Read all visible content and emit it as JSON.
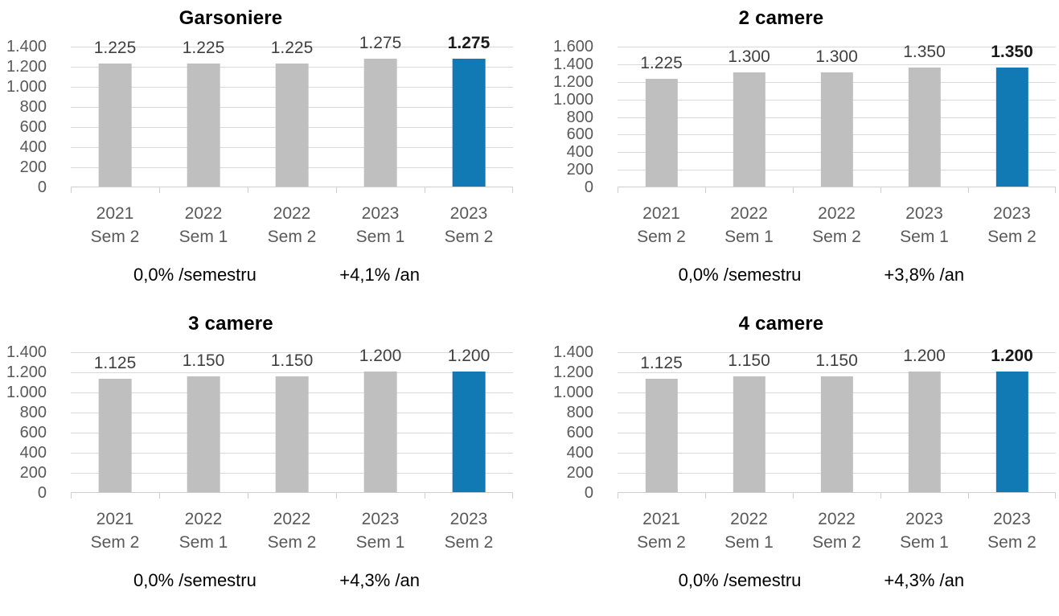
{
  "colors": {
    "bar_gray": "#bfbfbf",
    "bar_blue": "#117ab5",
    "gridline": "#d9d9d9",
    "axis_line": "#cfcfcf",
    "tick_text": "#595959",
    "value_text": "#404040",
    "value_text_bold": "#1a1a1a",
    "title_text": "#000000",
    "annotation_text": "#000000"
  },
  "chart_data": [
    {
      "type": "bar",
      "title": "Garsoniere",
      "ylim": [
        0,
        1400
      ],
      "grid": true,
      "yticks": [
        "1.400",
        "1.200",
        "1.000",
        "800",
        "600",
        "400",
        "200",
        "0"
      ],
      "categories": [
        [
          "2021",
          "Sem 2"
        ],
        [
          "2022",
          "Sem 1"
        ],
        [
          "2022",
          "Sem 2"
        ],
        [
          "2023",
          "Sem 1"
        ],
        [
          "2023",
          "Sem 2"
        ]
      ],
      "values": [
        1225,
        1225,
        1225,
        1275,
        1275
      ],
      "value_labels": [
        "1.225",
        "1.225",
        "1.225",
        "1.275",
        "1.275"
      ],
      "highlight_last_bar": true,
      "last_label_bold": true,
      "annotations": {
        "semester": "0,0% /semestru",
        "year": "+4,1% /an"
      }
    },
    {
      "type": "bar",
      "title": "2 camere",
      "ylim": [
        0,
        1600
      ],
      "grid": true,
      "yticks": [
        "1.600",
        "1.400",
        "1.200",
        "1.000",
        "800",
        "600",
        "400",
        "200",
        "0"
      ],
      "categories": [
        [
          "2021",
          "Sem 2"
        ],
        [
          "2022",
          "Sem 1"
        ],
        [
          "2022",
          "Sem 2"
        ],
        [
          "2023",
          "Sem 1"
        ],
        [
          "2023",
          "Sem 2"
        ]
      ],
      "values": [
        1225,
        1300,
        1300,
        1350,
        1350
      ],
      "value_labels": [
        "1.225",
        "1.300",
        "1.300",
        "1.350",
        "1.350"
      ],
      "highlight_last_bar": true,
      "last_label_bold": true,
      "annotations": {
        "semester": "0,0% /semestru",
        "year": "+3,8% /an"
      }
    },
    {
      "type": "bar",
      "title": "3 camere",
      "ylim": [
        0,
        1400
      ],
      "grid": true,
      "yticks": [
        "1.400",
        "1.200",
        "1.000",
        "800",
        "600",
        "400",
        "200",
        "0"
      ],
      "categories": [
        [
          "2021",
          "Sem 2"
        ],
        [
          "2022",
          "Sem 1"
        ],
        [
          "2022",
          "Sem 2"
        ],
        [
          "2023",
          "Sem 1"
        ],
        [
          "2023",
          "Sem 2"
        ]
      ],
      "values": [
        1125,
        1150,
        1150,
        1200,
        1200
      ],
      "value_labels": [
        "1.125",
        "1.150",
        "1.150",
        "1.200",
        "1.200"
      ],
      "highlight_last_bar": true,
      "last_label_bold": false,
      "annotations": {
        "semester": "0,0% /semestru",
        "year": "+4,3% /an"
      }
    },
    {
      "type": "bar",
      "title": "4 camere",
      "ylim": [
        0,
        1400
      ],
      "grid": true,
      "yticks": [
        "1.400",
        "1.200",
        "1.000",
        "800",
        "600",
        "400",
        "200",
        "0"
      ],
      "categories": [
        [
          "2021",
          "Sem 2"
        ],
        [
          "2022",
          "Sem 1"
        ],
        [
          "2022",
          "Sem 2"
        ],
        [
          "2023",
          "Sem 1"
        ],
        [
          "2023",
          "Sem 2"
        ]
      ],
      "values": [
        1125,
        1150,
        1150,
        1200,
        1200
      ],
      "value_labels": [
        "1.125",
        "1.150",
        "1.150",
        "1.200",
        "1.200"
      ],
      "highlight_last_bar": true,
      "last_label_bold": true,
      "annotations": {
        "semester": "0,0% /semestru",
        "year": "+4,3% /an"
      }
    }
  ]
}
